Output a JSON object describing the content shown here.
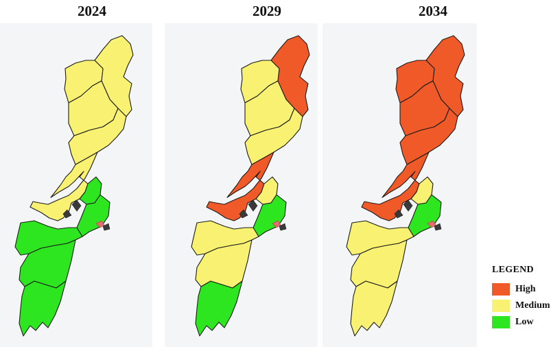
{
  "colors": {
    "high": "#f05a28",
    "medium": "#f8f172",
    "low": "#2ee620",
    "border": "#1a1a1a",
    "background": "#f4f5f7"
  },
  "panels": [
    {
      "year": "2024",
      "regions": {
        "north_east": "medium",
        "north_west": "medium",
        "central_north": "medium",
        "central": "medium",
        "south_central": "medium",
        "mid_strait": "low",
        "east_coast": "low",
        "south_west": "low",
        "south_east": "low",
        "south_tip": "low"
      }
    },
    {
      "year": "2029",
      "regions": {
        "north_east": "high",
        "north_west": "medium",
        "central_north": "medium",
        "central": "medium",
        "south_central": "high",
        "mid_strait": "medium",
        "east_coast": "low",
        "south_west": "medium",
        "south_east": "medium",
        "south_tip": "low"
      }
    },
    {
      "year": "2034",
      "regions": {
        "north_east": "high",
        "north_west": "high",
        "central_north": "high",
        "central": "high",
        "south_central": "high",
        "mid_strait": "medium",
        "east_coast": "low",
        "south_west": "medium",
        "south_east": "medium",
        "south_tip": "medium"
      }
    }
  ],
  "legend": {
    "title": "LEGEND",
    "items": [
      {
        "label": "High",
        "level": "high"
      },
      {
        "label": "Medium",
        "level": "medium"
      },
      {
        "label": "Low",
        "level": "low"
      }
    ]
  }
}
